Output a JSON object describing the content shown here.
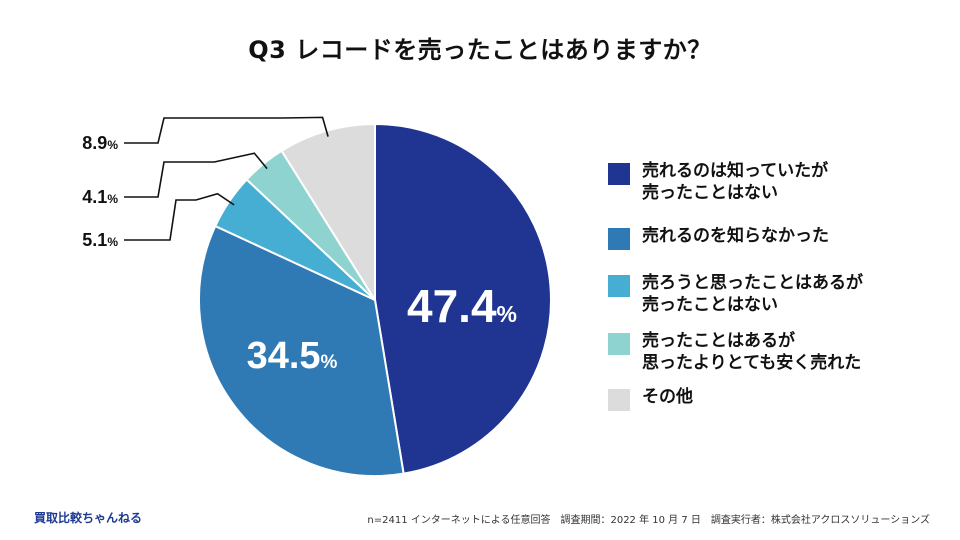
{
  "title": "Q3 レコードを売ったことはありますか？",
  "chart_data": {
    "type": "pie",
    "title": "Q3 レコードを売ったことはありますか？",
    "slices": [
      {
        "label": "売れるのは知っていたが\n売ったことはない",
        "value": 47.4,
        "color": "#1f3591",
        "display": "47.4",
        "unit": "%"
      },
      {
        "label": "売れるのを知らなかった",
        "value": 34.5,
        "color": "#2f7ab4",
        "display": "34.5",
        "unit": "%"
      },
      {
        "label": "売ろうと思ったことはあるが\n売ったことはない",
        "value": 5.1,
        "color": "#46aed2",
        "display": "5.1",
        "unit": "%"
      },
      {
        "label": "売ったことはあるが\n思ったよりとても安く売れた",
        "value": 4.1,
        "color": "#8fd3d0",
        "display": "4.1",
        "unit": "%"
      },
      {
        "label": "その他",
        "value": 8.9,
        "color": "#dcdcdc",
        "display": "8.9",
        "unit": "%"
      }
    ]
  },
  "brand": "買取比較ちゃんねる",
  "footnote": "n=2411 インターネットによる任意回答　調査期間：2022 年 10 月 7 日　調査実行者：株式会社アクロスソリューションズ"
}
